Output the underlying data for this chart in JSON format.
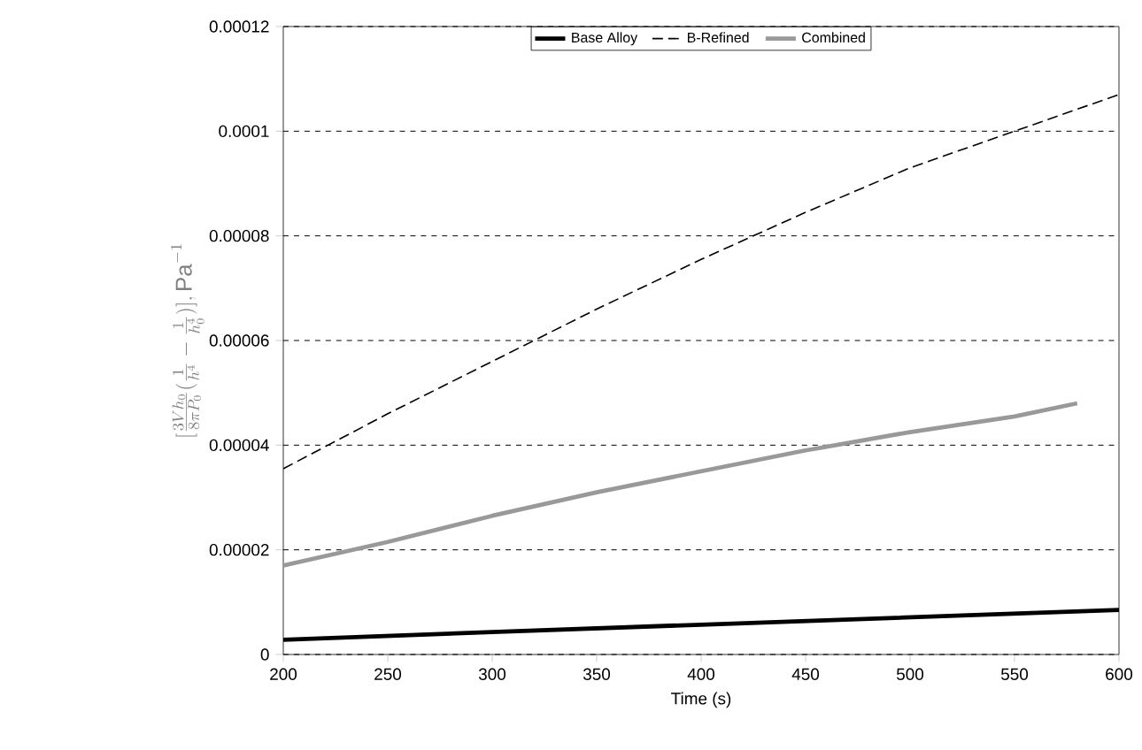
{
  "chart_data": {
    "type": "line",
    "xlabel": "Time (s)",
    "ylabel": "[\\frac{3Vh_0}{8\\pi P_0}(\\frac{1}{h^4}-\\frac{1}{h_0^4})], \\mathrm{Pa}^{-1}",
    "series": [
      {
        "name": "Base Alloy",
        "color": "#000000",
        "line_style": "solid",
        "x": [
          200,
          300,
          400,
          500,
          600
        ],
        "values": [
          2.8e-06,
          4.3e-06,
          5.7e-06,
          7.1e-06,
          8.5e-06
        ]
      },
      {
        "name": "B-Refined",
        "color": "#000000",
        "line_style": "dashed",
        "x": [
          200,
          250,
          300,
          350,
          400,
          450,
          500,
          550,
          600
        ],
        "values": [
          3.55e-05,
          4.6e-05,
          5.6e-05,
          6.6e-05,
          7.55e-05,
          8.45e-05,
          9.3e-05,
          0.0001,
          0.000107
        ]
      },
      {
        "name": "Combined",
        "color": "#999999",
        "line_style": "solid",
        "x": [
          200,
          250,
          300,
          350,
          400,
          450,
          500,
          550,
          580
        ],
        "values": [
          1.7e-05,
          2.15e-05,
          2.65e-05,
          3.1e-05,
          3.5e-05,
          3.9e-05,
          4.25e-05,
          4.55e-05,
          4.8e-05
        ]
      }
    ],
    "xlim": [
      200,
      600
    ],
    "xticks": [
      200,
      250,
      300,
      350,
      400,
      450,
      500,
      550,
      600
    ],
    "ylim": [
      0,
      0.00012
    ],
    "yticks": [
      0,
      {
        "value": 2e-05,
        "label": "0.00002"
      },
      {
        "value": 4e-05,
        "label": "0.00004"
      },
      {
        "value": 6e-05,
        "label": "0.00006"
      },
      {
        "value": 8e-05,
        "label": "0.00008"
      },
      {
        "value": 0.0001,
        "label": "0.0001"
      },
      {
        "value": 0.00012,
        "label": "0.00012"
      }
    ],
    "grid": "y",
    "legend": "top",
    "marker": "none"
  }
}
